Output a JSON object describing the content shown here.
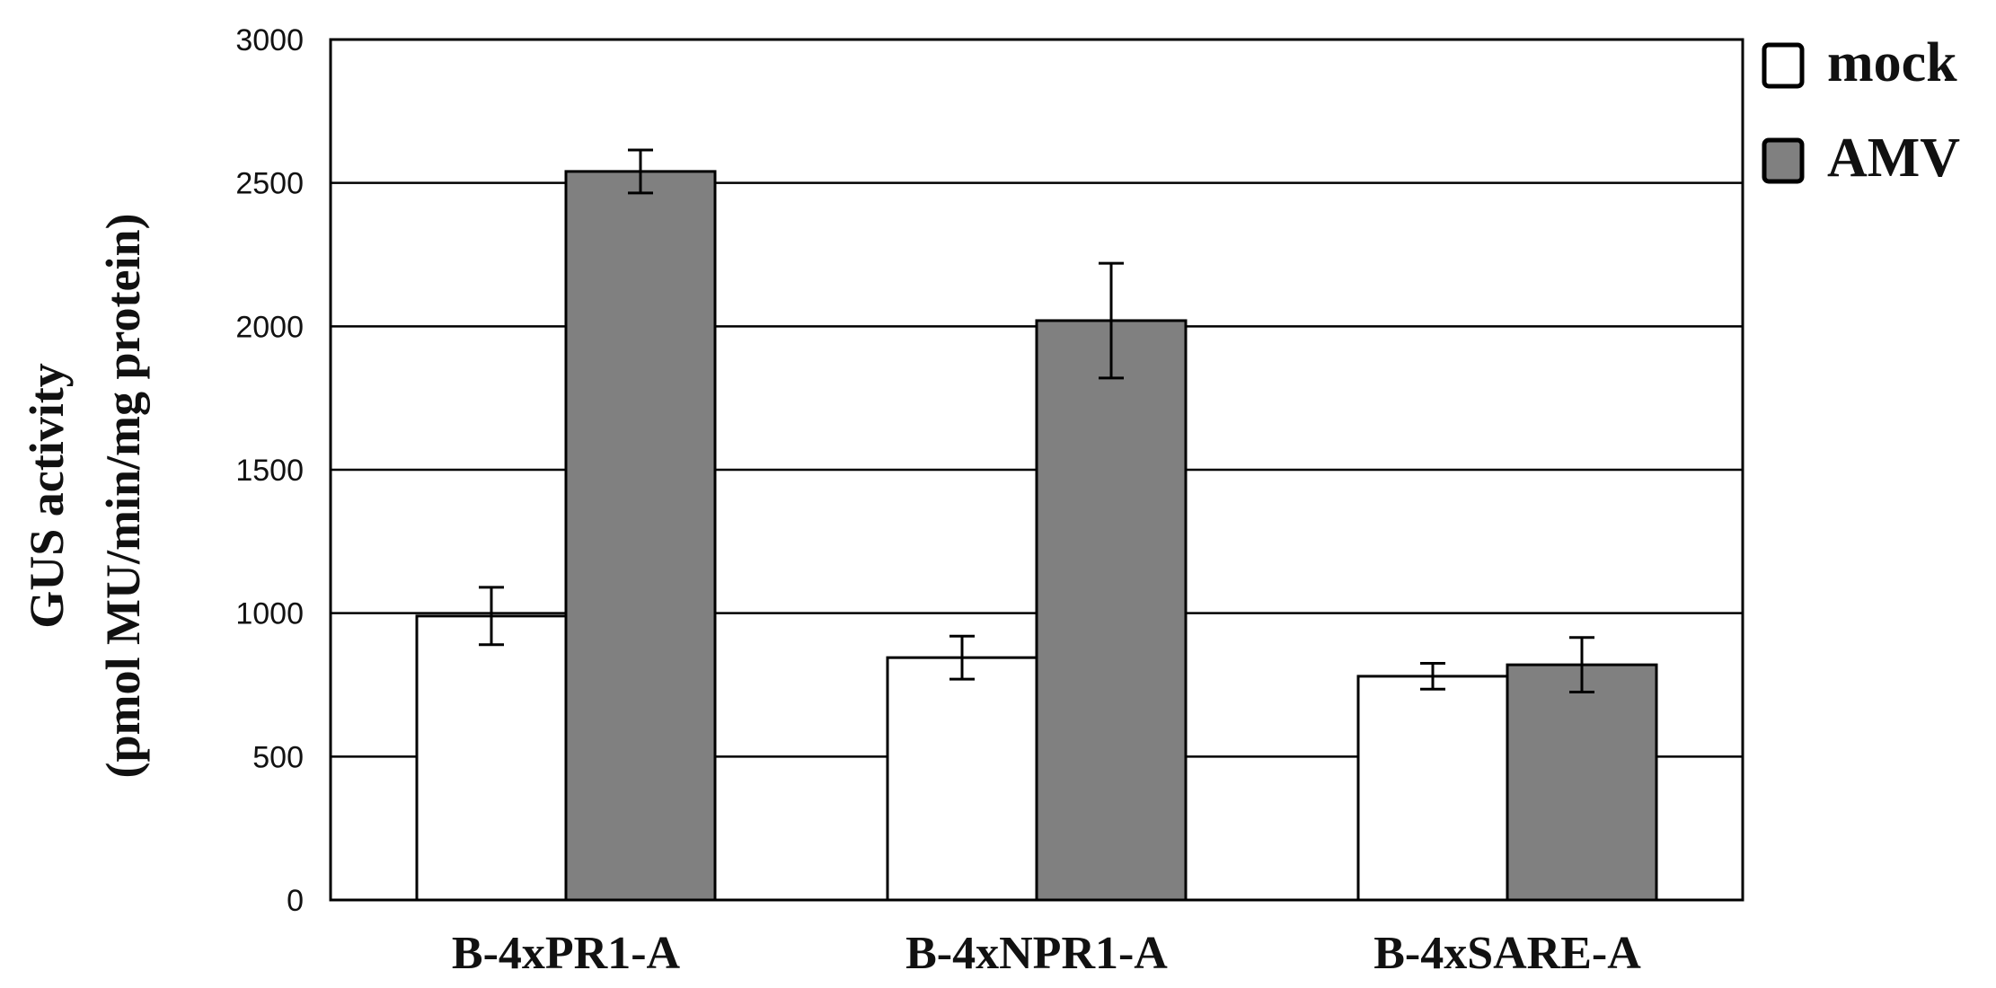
{
  "chart_data": {
    "type": "bar",
    "title": "",
    "xlabel": "",
    "ylabel_line1": "GUS activity",
    "ylabel_line2": "(pmol MU/min/mg protein)",
    "categories": [
      "B-4xPR1-A",
      "B-4xNPR1-A",
      "B-4xSARE-A"
    ],
    "series": [
      {
        "name": "mock",
        "values": [
          990,
          845,
          780
        ],
        "errors": [
          100,
          75,
          45
        ],
        "color": "#ffffff"
      },
      {
        "name": "AMV",
        "values": [
          2540,
          2020,
          820
        ],
        "errors": [
          75,
          200,
          95
        ],
        "color": "#808080"
      }
    ],
    "ylim": [
      0,
      3000
    ],
    "yticks": [
      0,
      500,
      1000,
      1500,
      2000,
      2500,
      3000
    ],
    "grid": true,
    "legend": "top-right"
  }
}
